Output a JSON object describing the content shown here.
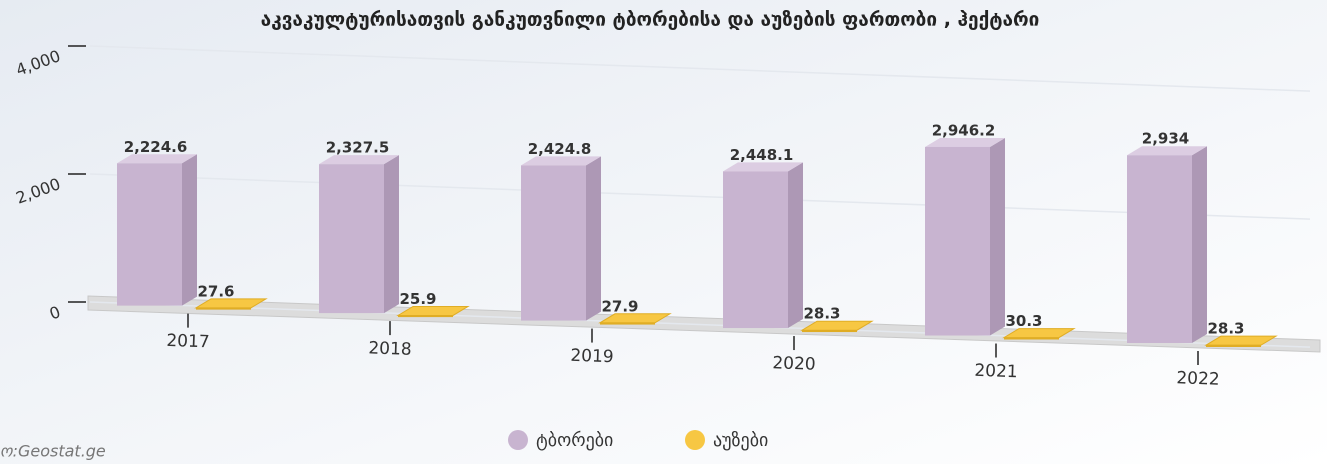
{
  "chart_data": {
    "type": "bar3d",
    "title": "აკვაკულტურისათვის განკუთვნილი ტბორებისა და აუზების ფართობი , ჰექტარი",
    "source": "ო:Geostat.ge",
    "categories": [
      "2017",
      "2018",
      "2019",
      "2020",
      "2021",
      "2022"
    ],
    "series": [
      {
        "name": "ტბორები",
        "color": "#c8b4d0",
        "values": [
          2224.6,
          2327.5,
          2424.8,
          2448.1,
          2946.2,
          2934
        ],
        "value_labels": [
          "2,224.6",
          "2,327.5",
          "2,424.8",
          "2,448.1",
          "2,946.2",
          "2,934"
        ]
      },
      {
        "name": "აუზები",
        "color": "#f7c743",
        "values": [
          27.6,
          25.9,
          27.9,
          28.3,
          30.3,
          28.3
        ]
      }
    ],
    "ylim": [
      0,
      4000
    ],
    "yticks": [
      0,
      {
        "value": 2000,
        "label": "2,000"
      },
      {
        "value": 4000,
        "label": "4,000"
      }
    ],
    "grid": true,
    "legend": "bottom"
  }
}
